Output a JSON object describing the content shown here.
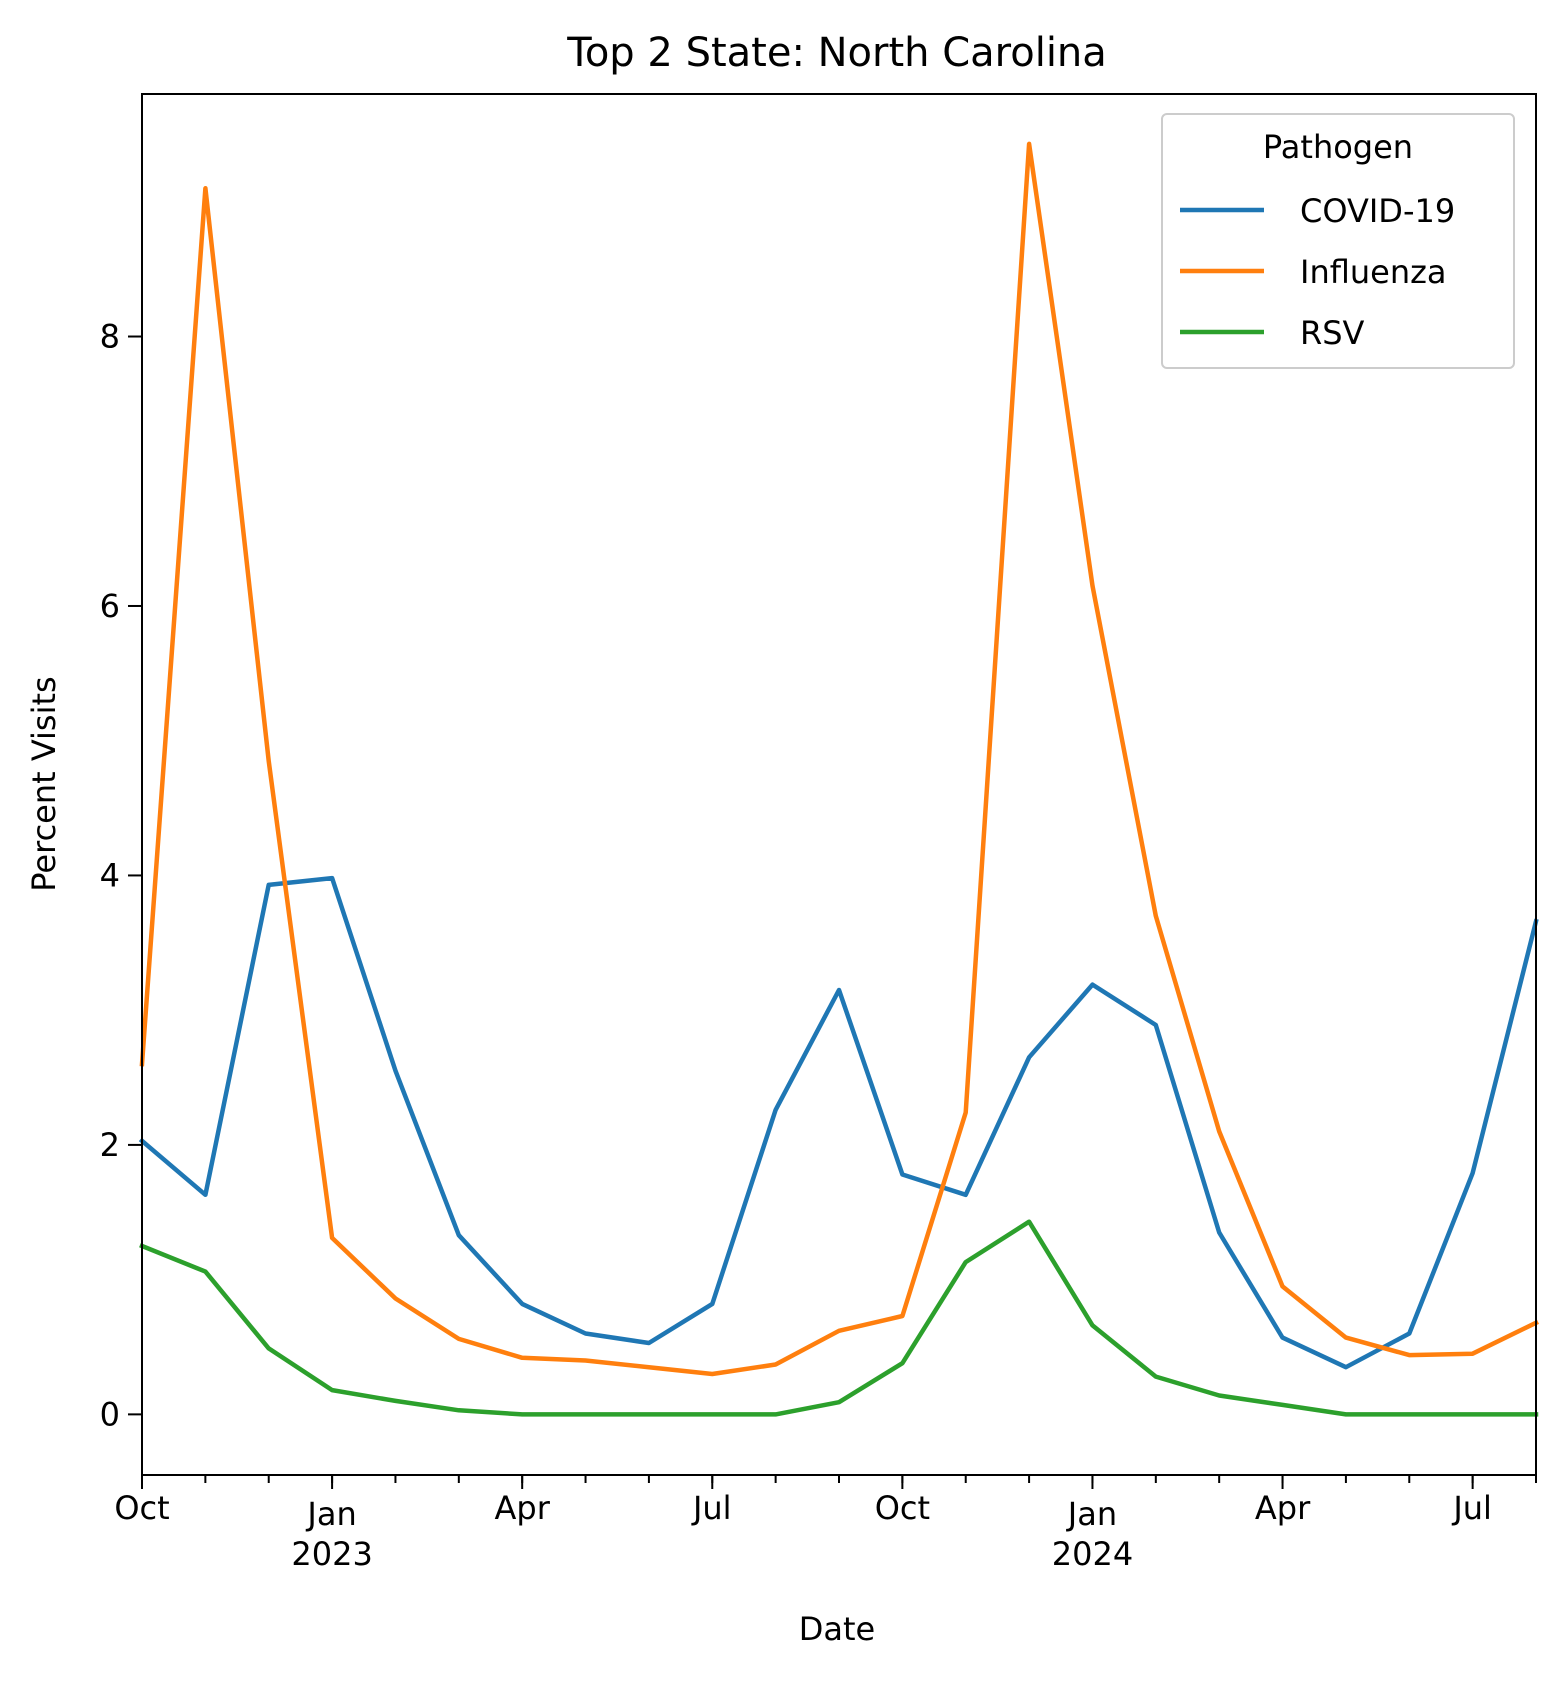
{
  "chart_data": {
    "type": "line",
    "title": "Top 2 State: North Carolina",
    "xlabel": "Date",
    "ylabel": "Percent Visits",
    "x": [
      "2022-10",
      "2022-11",
      "2022-12",
      "2023-01",
      "2023-02",
      "2023-03",
      "2023-04",
      "2023-05",
      "2023-06",
      "2023-07",
      "2023-08",
      "2023-09",
      "2023-10",
      "2023-11",
      "2023-12",
      "2024-01",
      "2024-02",
      "2024-03",
      "2024-04",
      "2024-05",
      "2024-06",
      "2024-07",
      "2024-08"
    ],
    "xlim": [
      "2022-10",
      "2024-08"
    ],
    "ylim": [
      -0.45,
      9.8
    ],
    "y_ticks": [
      0,
      2,
      4,
      6,
      8
    ],
    "x_ticks": [
      {
        "date": "2022-10",
        "label": "Oct",
        "sublabel": ""
      },
      {
        "date": "2023-01",
        "label": "Jan",
        "sublabel": "2023"
      },
      {
        "date": "2023-04",
        "label": "Apr",
        "sublabel": ""
      },
      {
        "date": "2023-07",
        "label": "Jul",
        "sublabel": ""
      },
      {
        "date": "2023-10",
        "label": "Oct",
        "sublabel": ""
      },
      {
        "date": "2024-01",
        "label": "Jan",
        "sublabel": "2024"
      },
      {
        "date": "2024-04",
        "label": "Apr",
        "sublabel": ""
      },
      {
        "date": "2024-07",
        "label": "Jul",
        "sublabel": ""
      }
    ],
    "grid": false,
    "legend": {
      "title": "Pathogen",
      "position": "top-right"
    },
    "series": [
      {
        "name": "COVID-19",
        "color": "#1f77b4",
        "values": [
          2.03,
          1.63,
          3.93,
          3.98,
          2.55,
          1.33,
          0.82,
          0.6,
          0.53,
          0.82,
          2.26,
          3.15,
          1.78,
          1.63,
          2.65,
          3.19,
          2.89,
          1.35,
          0.57,
          0.35,
          0.6,
          1.79,
          3.66
        ]
      },
      {
        "name": "Influenza",
        "color": "#ff7f0e",
        "values": [
          2.6,
          9.1,
          4.85,
          1.31,
          0.86,
          0.56,
          0.42,
          0.4,
          0.35,
          0.3,
          0.37,
          0.62,
          0.73,
          2.24,
          9.43,
          6.15,
          3.7,
          2.1,
          0.95,
          0.57,
          0.44,
          0.45,
          0.68
        ]
      },
      {
        "name": "RSV",
        "color": "#2ca02c",
        "values": [
          1.25,
          1.06,
          0.49,
          0.18,
          0.1,
          0.03,
          0.0,
          0.0,
          0.0,
          0.0,
          0.0,
          0.09,
          0.38,
          1.13,
          1.43,
          0.66,
          0.28,
          0.14,
          0.07,
          0.0,
          0.0,
          0.0,
          0.0
        ]
      }
    ]
  }
}
